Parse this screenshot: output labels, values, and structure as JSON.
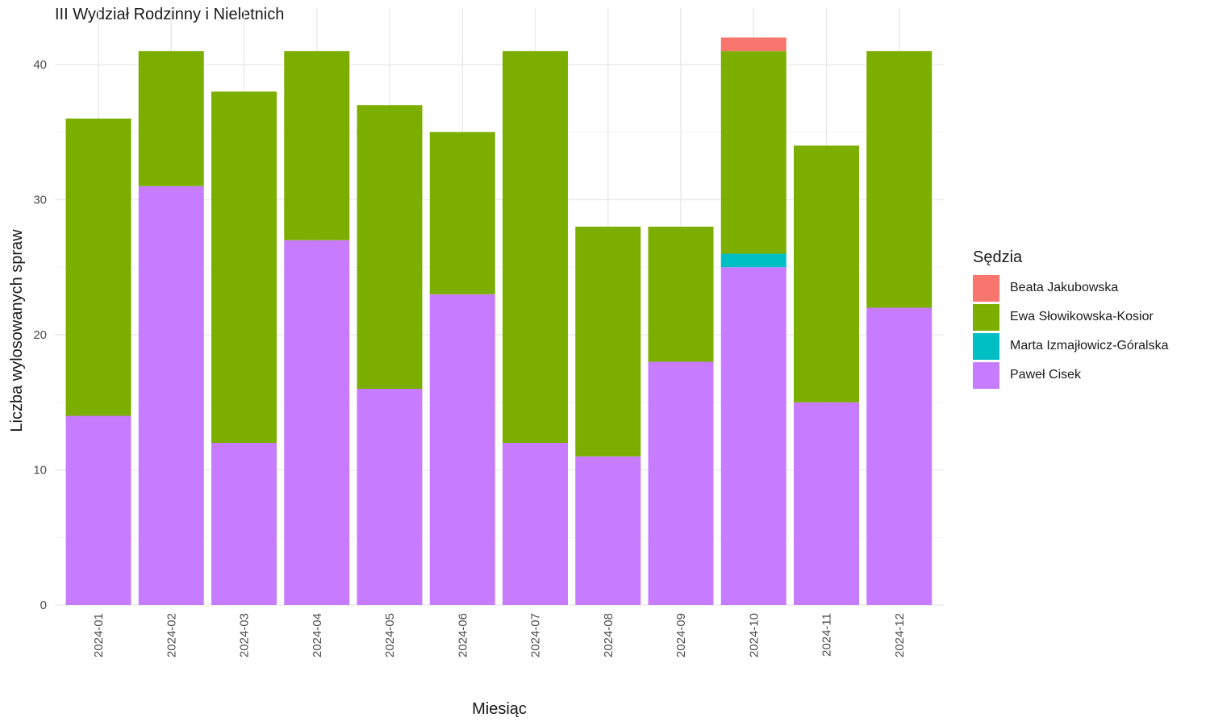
{
  "chart_data": {
    "type": "bar",
    "stacked": true,
    "title": "III Wydział Rodzinny i Nieletnich",
    "xlabel": "Miesiąc",
    "ylabel": "Liczba wylosowanych spraw",
    "ylim": [
      0,
      42
    ],
    "yticks": [
      0,
      10,
      20,
      30,
      40
    ],
    "grid": true,
    "legend_title": "Sędzia",
    "legend_position": "right",
    "categories": [
      "2024-01",
      "2024-02",
      "2024-03",
      "2024-04",
      "2024-05",
      "2024-06",
      "2024-07",
      "2024-08",
      "2024-09",
      "2024-10",
      "2024-11",
      "2024-12"
    ],
    "series": [
      {
        "name": "Paweł Cisek",
        "color": "#C77CFF",
        "values": [
          14,
          31,
          12,
          27,
          16,
          23,
          12,
          11,
          18,
          25,
          15,
          22
        ]
      },
      {
        "name": "Marta Izmajłowicz-Góralska",
        "color": "#00BFC4",
        "values": [
          0,
          0,
          0,
          0,
          0,
          0,
          0,
          0,
          0,
          1,
          0,
          0
        ]
      },
      {
        "name": "Ewa Słowikowska-Kosior",
        "color": "#7CAE00",
        "values": [
          22,
          10,
          26,
          14,
          21,
          12,
          29,
          17,
          10,
          15,
          19,
          19
        ]
      },
      {
        "name": "Beata Jakubowska",
        "color": "#F8766D",
        "values": [
          0,
          0,
          0,
          0,
          0,
          0,
          0,
          0,
          0,
          1,
          0,
          0
        ]
      }
    ],
    "legend_order": [
      "Beata Jakubowska",
      "Ewa Słowikowska-Kosior",
      "Marta Izmajłowicz-Góralska",
      "Paweł Cisek"
    ]
  }
}
